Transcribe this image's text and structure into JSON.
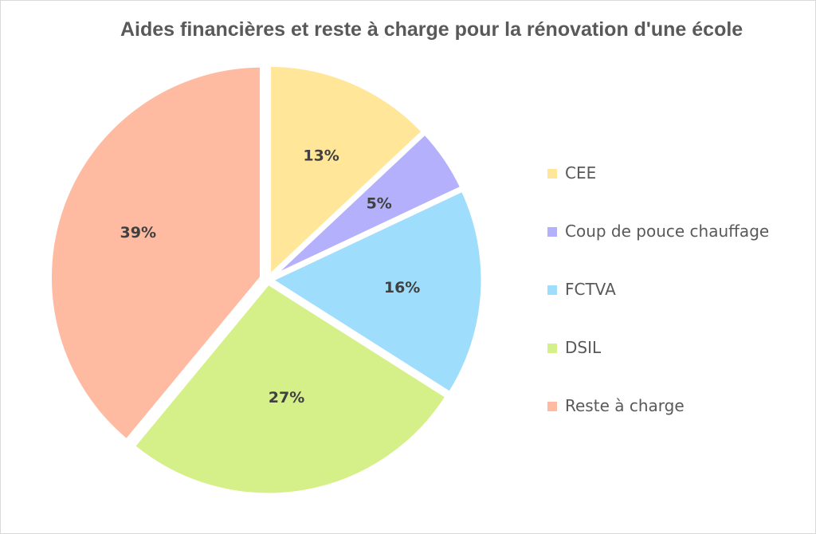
{
  "chart_data": {
    "type": "pie",
    "title": "Aides financières et reste à charge pour la rénovation d'une école",
    "slices": [
      {
        "name": "CEE",
        "value": 13,
        "label": "13%",
        "color": "#FFE699"
      },
      {
        "name": "Coup de pouce chauffage",
        "value": 5,
        "label": "5%",
        "color": "#B4B0FC"
      },
      {
        "name": "FCTVA",
        "value": 16,
        "label": "16%",
        "color": "#9FDDFC"
      },
      {
        "name": "DSIL",
        "value": 27,
        "label": "27%",
        "color": "#D6F089"
      },
      {
        "name": "Reste à charge",
        "value": 39,
        "label": "39%",
        "color": "#FFBBA1"
      }
    ],
    "legend_position": "right",
    "exploded": true
  }
}
